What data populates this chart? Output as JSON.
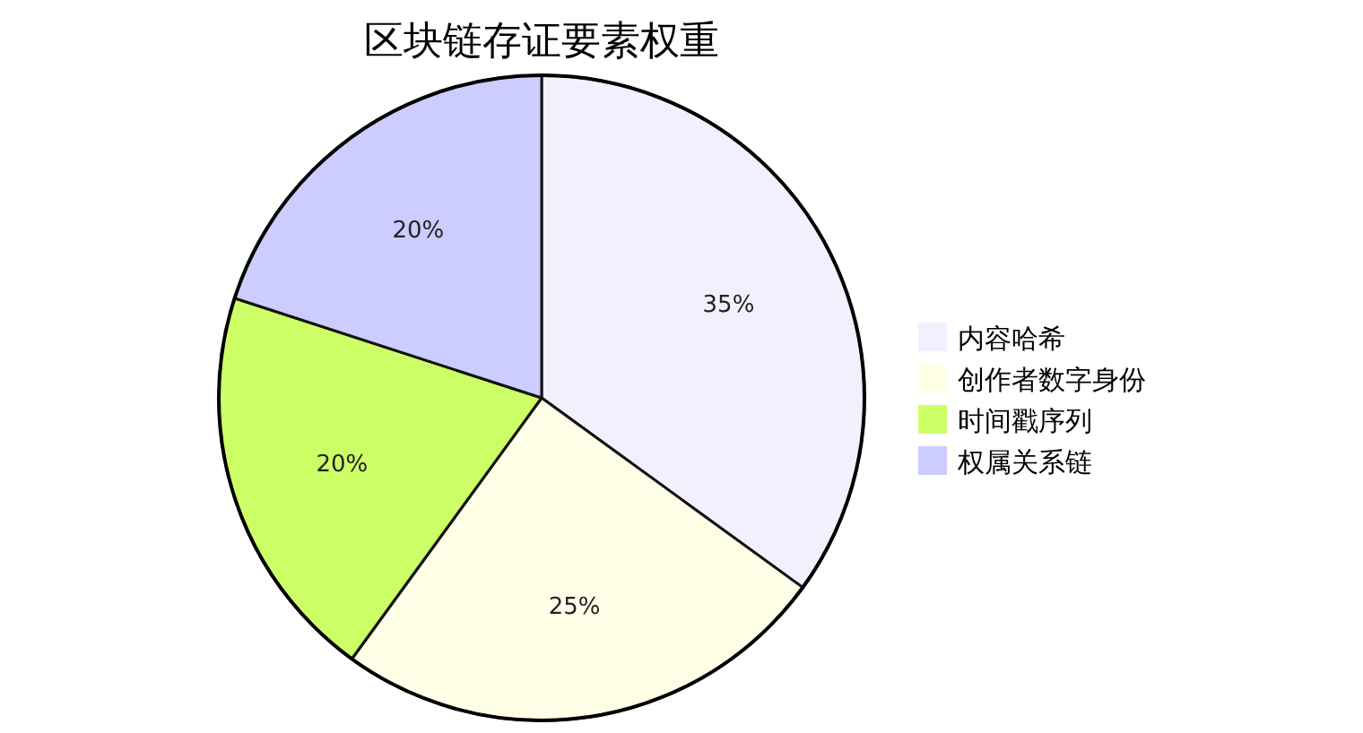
{
  "chart_data": {
    "type": "pie",
    "title": "区块链存证要素权重",
    "categories": [
      "内容哈希",
      "创作者数字身份",
      "时间戳序列",
      "权属关系链"
    ],
    "values": [
      35,
      25,
      20,
      20
    ],
    "colors": [
      "#f0f0ff",
      "#ffffe8",
      "#ccff66",
      "#ccccff"
    ],
    "value_labels": [
      "35%",
      "25%",
      "20%",
      "20%"
    ],
    "legend": "right"
  }
}
